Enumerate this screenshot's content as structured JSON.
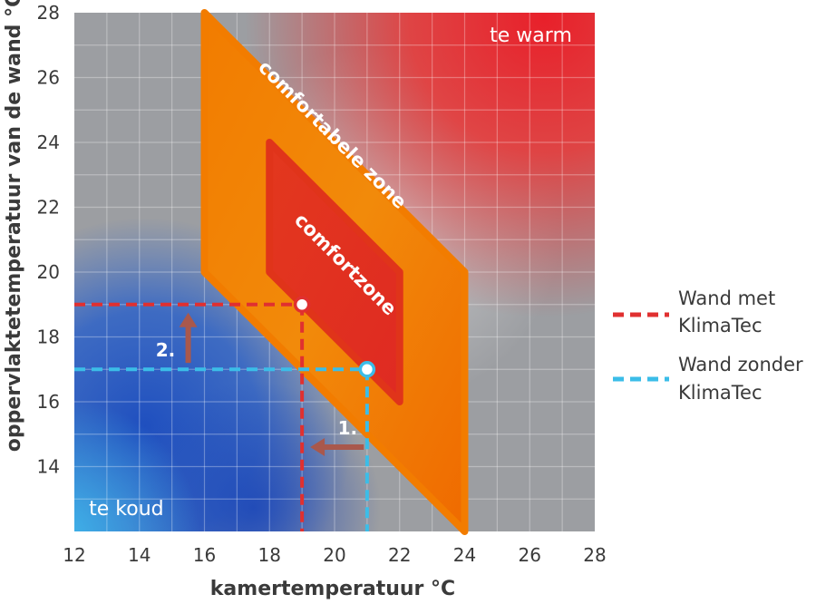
{
  "chart_data": {
    "type": "scatter",
    "xlabel": "kamertemperatuur °C",
    "ylabel": "oppervlaktetemperatuur van de wand °C",
    "xlim": [
      12,
      28
    ],
    "ylim": [
      12,
      28
    ],
    "x_ticks": [
      "12",
      "14",
      "16",
      "18",
      "20",
      "22",
      "24",
      "26",
      "28"
    ],
    "y_ticks": [
      "14",
      "16",
      "18",
      "20",
      "22",
      "24",
      "26",
      "28"
    ],
    "grid": true,
    "regions": [
      {
        "label": "te warm",
        "color": "#e0282b"
      },
      {
        "label": "te koud",
        "color": "#2a5fc8"
      }
    ],
    "zones": [
      {
        "label": "comfortabele zone",
        "color": "#f07800",
        "polygon": [
          [
            16,
            28
          ],
          [
            24,
            20
          ],
          [
            24,
            12
          ],
          [
            16,
            20
          ]
        ]
      },
      {
        "label": "comfortzone",
        "color": "#e0341a",
        "polygon": [
          [
            18,
            24
          ],
          [
            22,
            20
          ],
          [
            22,
            16
          ],
          [
            18,
            20
          ]
        ]
      }
    ],
    "series": [
      {
        "name": "Wand met KlimaTec",
        "color": "#e03030",
        "point": {
          "x": 19,
          "y": 19
        }
      },
      {
        "name": "Wand zonder KlimaTec",
        "color": "#3bbde8",
        "point": {
          "x": 21,
          "y": 17
        }
      }
    ],
    "annotations": [
      {
        "label": "1.",
        "type": "arrow-left"
      },
      {
        "label": "2.",
        "type": "arrow-up"
      }
    ]
  },
  "legend": {
    "with_line1": "Wand met",
    "with_line2": "KlimaTec",
    "without_line1": "Wand zonder",
    "without_line2": "KlimaTec"
  }
}
